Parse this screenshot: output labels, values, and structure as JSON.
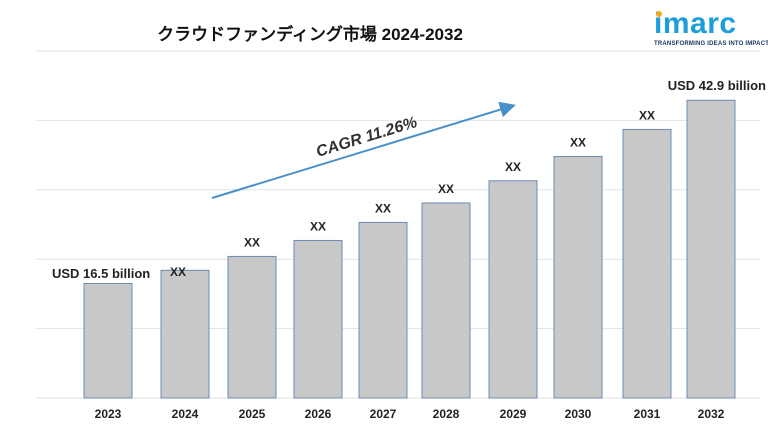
{
  "chart_data": {
    "type": "bar",
    "title": "クラウドファンディング市場 2024-2032",
    "categories": [
      "2023",
      "2024",
      "2025",
      "2026",
      "2027",
      "2028",
      "2029",
      "2030",
      "2031",
      "2032"
    ],
    "values": [
      16.5,
      18.4,
      20.4,
      22.7,
      25.3,
      28.1,
      31.3,
      34.8,
      38.7,
      42.9
    ],
    "data_labels": [
      "USD 16.5 billion",
      "XX",
      "XX",
      "XX",
      "XX",
      "XX",
      "XX",
      "XX",
      "XX",
      "USD 42.9 billion"
    ],
    "annotation": "CAGR 11.26%",
    "ylim": [
      0,
      50
    ],
    "grid": true,
    "bar_color": "#c8c8c8",
    "bar_border_color": "#6b8bb5",
    "arrow_color": "#4a90c8"
  },
  "logo": {
    "word": "imarc",
    "tagline": "TRANSFORMING IDEAS INTO IMPACT",
    "color": "#1b9ed9",
    "accent": "#f5a623"
  }
}
